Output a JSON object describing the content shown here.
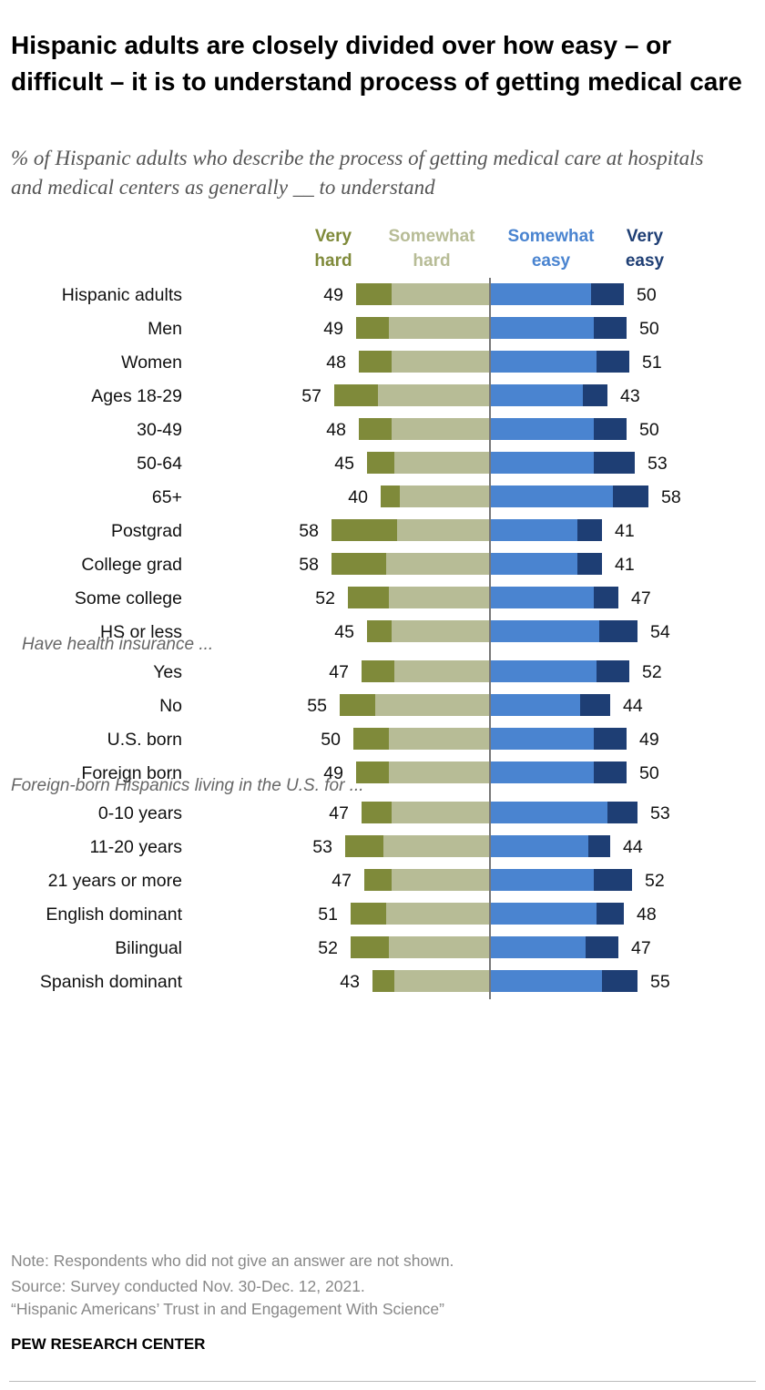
{
  "title": "Hispanic adults are closely divided over how easy – or difficult – it is to understand process of getting medical care",
  "subtitle": "% of Hispanic adults who describe the process of getting medical care at hospitals and medical centers as generally __ to understand",
  "colors": {
    "very_hard": "#7f8a3a",
    "somewhat_hard": "#b7bc96",
    "somewhat_easy": "#4a84d0",
    "very_easy": "#1e3e74",
    "divider": "#777777"
  },
  "chart_data": {
    "type": "bar",
    "series_labels": {
      "very_hard": "Very hard",
      "somewhat_hard": "Somewhat hard",
      "somewhat_easy": "Somewhat easy",
      "very_easy": "Very easy"
    },
    "groups": [
      {
        "header": "",
        "rows": [
          {
            "label": "Hispanic adults",
            "very_hard": 13,
            "somewhat_hard": 36,
            "somewhat_easy": 37,
            "very_easy": 12,
            "hard_total": 49,
            "easy_total": 50
          }
        ]
      },
      {
        "header": "",
        "rows": [
          {
            "label": "Men",
            "very_hard": 12,
            "somewhat_hard": 37,
            "somewhat_easy": 38,
            "very_easy": 12,
            "hard_total": 49,
            "easy_total": 50
          },
          {
            "label": "Women",
            "very_hard": 12,
            "somewhat_hard": 36,
            "somewhat_easy": 39,
            "very_easy": 12,
            "hard_total": 48,
            "easy_total": 51
          }
        ]
      },
      {
        "header": "",
        "rows": [
          {
            "label": "Ages 18-29",
            "very_hard": 16,
            "somewhat_hard": 41,
            "somewhat_easy": 34,
            "very_easy": 9,
            "hard_total": 57,
            "easy_total": 43
          },
          {
            "label": "30-49",
            "very_hard": 12,
            "somewhat_hard": 36,
            "somewhat_easy": 38,
            "very_easy": 12,
            "hard_total": 48,
            "easy_total": 50
          },
          {
            "label": "50-64",
            "very_hard": 10,
            "somewhat_hard": 35,
            "somewhat_easy": 38,
            "very_easy": 15,
            "hard_total": 45,
            "easy_total": 53
          },
          {
            "label": "65+",
            "very_hard": 7,
            "somewhat_hard": 33,
            "somewhat_easy": 45,
            "very_easy": 13,
            "hard_total": 40,
            "easy_total": 58
          }
        ]
      },
      {
        "header": "",
        "rows": [
          {
            "label": "Postgrad",
            "very_hard": 24,
            "somewhat_hard": 34,
            "somewhat_easy": 32,
            "very_easy": 9,
            "hard_total": 58,
            "easy_total": 41
          },
          {
            "label": "College grad",
            "very_hard": 20,
            "somewhat_hard": 38,
            "somewhat_easy": 32,
            "very_easy": 9,
            "hard_total": 58,
            "easy_total": 41
          },
          {
            "label": "Some college",
            "very_hard": 15,
            "somewhat_hard": 37,
            "somewhat_easy": 38,
            "very_easy": 9,
            "hard_total": 52,
            "easy_total": 47
          },
          {
            "label": "HS or less",
            "very_hard": 9,
            "somewhat_hard": 36,
            "somewhat_easy": 40,
            "very_easy": 14,
            "hard_total": 45,
            "easy_total": 54
          }
        ]
      },
      {
        "header": "Have health insurance ...",
        "rows": [
          {
            "label": "Yes",
            "very_hard": 12,
            "somewhat_hard": 35,
            "somewhat_easy": 39,
            "very_easy": 12,
            "hard_total": 47,
            "easy_total": 52
          },
          {
            "label": "No",
            "very_hard": 13,
            "somewhat_hard": 42,
            "somewhat_easy": 33,
            "very_easy": 11,
            "hard_total": 55,
            "easy_total": 44
          }
        ]
      },
      {
        "header": "",
        "rows": [
          {
            "label": "U.S. born",
            "very_hard": 13,
            "somewhat_hard": 37,
            "somewhat_easy": 38,
            "very_easy": 12,
            "hard_total": 50,
            "easy_total": 49
          },
          {
            "label": "Foreign born",
            "very_hard": 12,
            "somewhat_hard": 37,
            "somewhat_easy": 38,
            "very_easy": 12,
            "hard_total": 49,
            "easy_total": 50
          }
        ]
      },
      {
        "header": "Foreign-born Hispanics living in the U.S. for ...",
        "rows": [
          {
            "label": "0-10 years",
            "very_hard": 11,
            "somewhat_hard": 36,
            "somewhat_easy": 43,
            "very_easy": 11,
            "hard_total": 47,
            "easy_total": 53
          },
          {
            "label": "11-20 years",
            "very_hard": 14,
            "somewhat_hard": 39,
            "somewhat_easy": 36,
            "very_easy": 8,
            "hard_total": 53,
            "easy_total": 44
          },
          {
            "label": "21 years or more",
            "very_hard": 10,
            "somewhat_hard": 36,
            "somewhat_easy": 38,
            "very_easy": 14,
            "hard_total": 47,
            "easy_total": 52
          }
        ]
      },
      {
        "header": "",
        "rows": [
          {
            "label": "English dominant",
            "very_hard": 13,
            "somewhat_hard": 38,
            "somewhat_easy": 39,
            "very_easy": 10,
            "hard_total": 51,
            "easy_total": 48
          },
          {
            "label": "Bilingual",
            "very_hard": 14,
            "somewhat_hard": 37,
            "somewhat_easy": 35,
            "very_easy": 12,
            "hard_total": 52,
            "easy_total": 47
          },
          {
            "label": "Spanish dominant",
            "very_hard": 8,
            "somewhat_hard": 35,
            "somewhat_easy": 41,
            "very_easy": 13,
            "hard_total": 43,
            "easy_total": 55
          }
        ]
      }
    ]
  },
  "footer": {
    "note": "Note: Respondents who did not give an answer are not shown.",
    "source": "Source: Survey conducted Nov. 30-Dec. 12, 2021.",
    "report": "“Hispanic Americans’ Trust in and Engagement With Science”",
    "brand": "PEW RESEARCH CENTER"
  }
}
